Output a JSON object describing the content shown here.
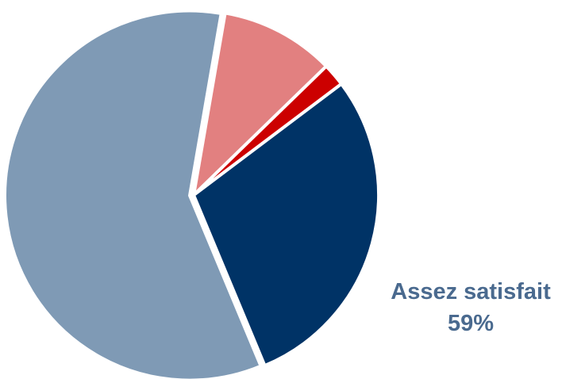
{
  "chart_data": {
    "type": "pie",
    "title": "",
    "slices": [
      {
        "label": "",
        "value": 29,
        "color": "#003366"
      },
      {
        "label": "Assez satisfait",
        "value": 59,
        "color": "#7f9ab5",
        "value_label": "59%"
      },
      {
        "label": "",
        "value": 10,
        "color": "#e28080"
      },
      {
        "label": "",
        "value": 2,
        "color": "#cc0000"
      }
    ],
    "start_angle_deg": 37,
    "label": {
      "name": "Assez satisfait",
      "value": "59%",
      "color": "#4a6a8f"
    }
  }
}
